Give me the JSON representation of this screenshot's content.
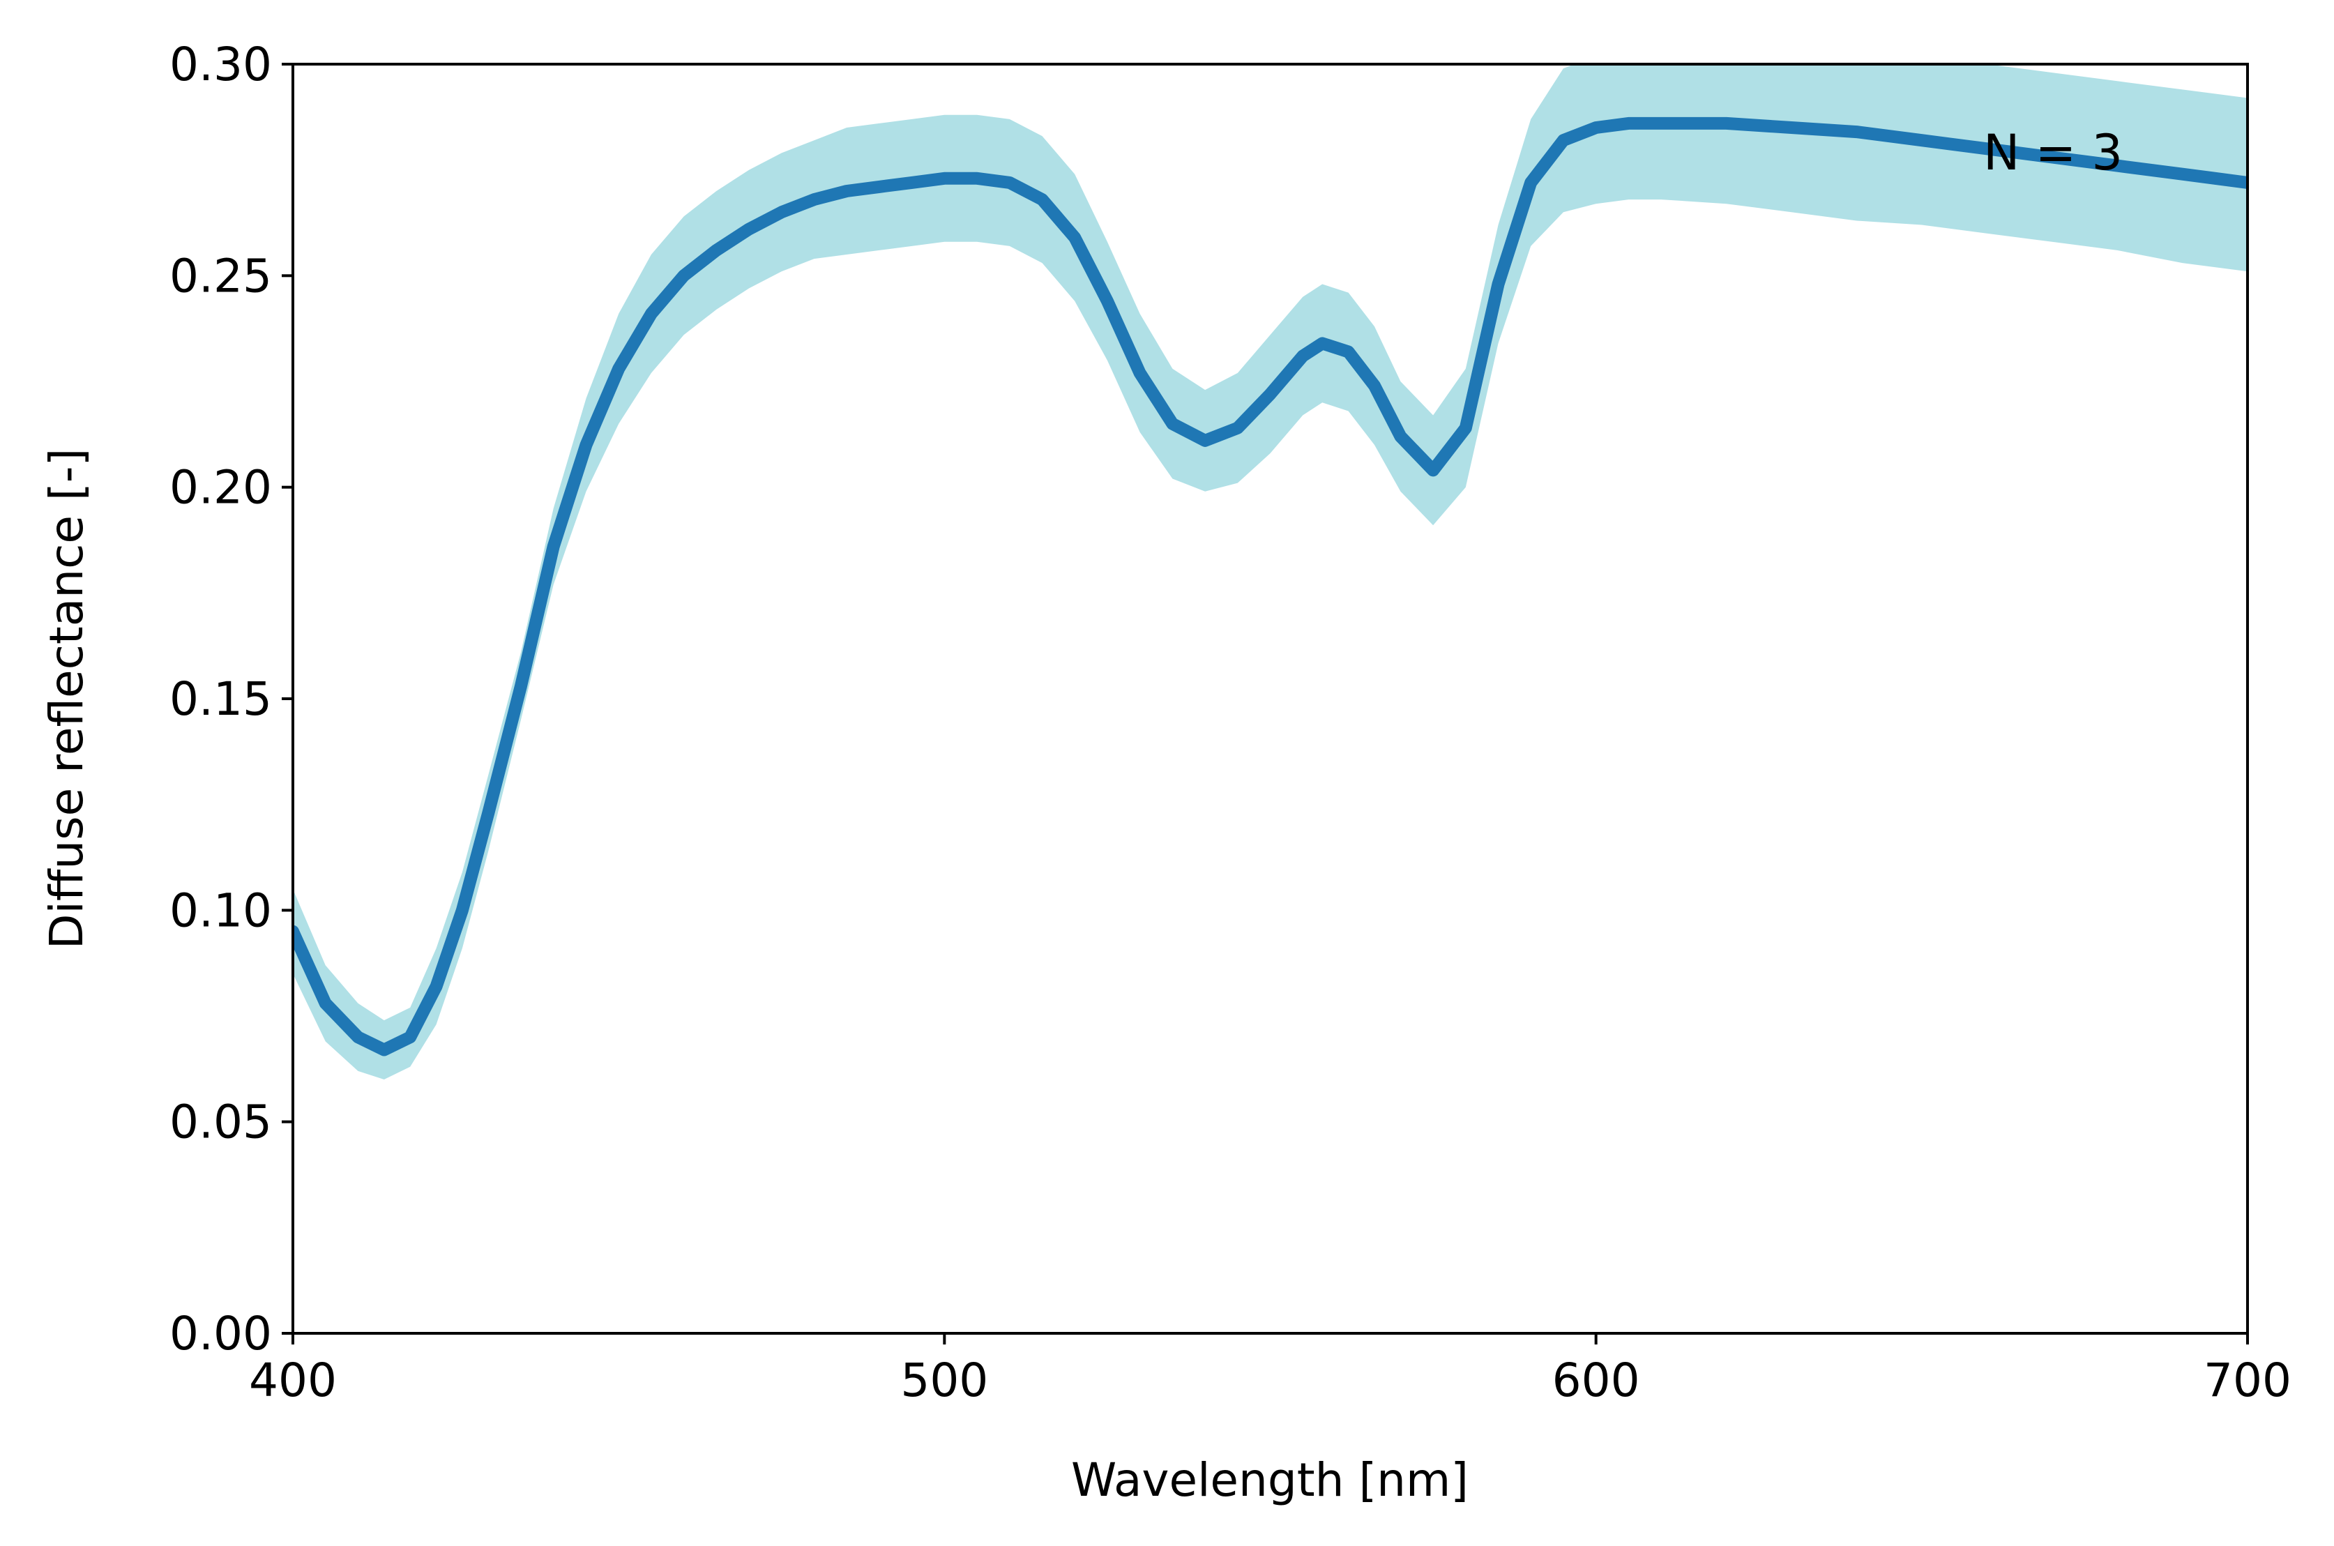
{
  "chart_data": {
    "type": "line",
    "xlabel": "Wavelength [nm]",
    "ylabel": "Diffuse reflectance [-]",
    "xlim": [
      400,
      700
    ],
    "ylim": [
      0.0,
      0.3
    ],
    "xticks": [
      "400",
      "500",
      "600",
      "700"
    ],
    "yticks": [
      "0.00",
      "0.05",
      "0.10",
      "0.15",
      "0.20",
      "0.25",
      "0.30"
    ],
    "grid": false,
    "annotation": "N = 3",
    "colors": {
      "line": "#1f77b4",
      "band": "#b0e0e6",
      "axis": "#000000"
    },
    "series": [
      {
        "x": [
          400,
          405,
          410,
          414,
          418,
          422,
          426,
          430,
          435,
          440,
          445,
          450,
          455,
          460,
          465,
          470,
          475,
          480,
          485,
          490,
          495,
          500,
          505,
          510,
          515,
          520,
          525,
          530,
          535,
          540,
          545,
          550,
          555,
          558,
          562,
          566,
          570,
          575,
          580,
          585,
          590,
          595,
          600,
          605,
          610,
          620,
          630,
          640,
          650,
          660,
          670,
          680,
          690,
          700
        ],
        "y": [
          0.095,
          0.078,
          0.07,
          0.067,
          0.07,
          0.082,
          0.1,
          0.123,
          0.153,
          0.186,
          0.21,
          0.228,
          0.241,
          0.25,
          0.256,
          0.261,
          0.265,
          0.268,
          0.27,
          0.271,
          0.272,
          0.273,
          0.273,
          0.272,
          0.268,
          0.259,
          0.244,
          0.227,
          0.215,
          0.211,
          0.214,
          0.222,
          0.231,
          0.234,
          0.232,
          0.224,
          0.212,
          0.204,
          0.214,
          0.248,
          0.272,
          0.282,
          0.285,
          0.286,
          0.286,
          0.286,
          0.285,
          0.284,
          0.282,
          0.28,
          0.278,
          0.276,
          0.274,
          0.272
        ],
        "lower": [
          0.085,
          0.069,
          0.062,
          0.06,
          0.063,
          0.073,
          0.091,
          0.114,
          0.145,
          0.177,
          0.199,
          0.215,
          0.227,
          0.236,
          0.242,
          0.247,
          0.251,
          0.254,
          0.255,
          0.256,
          0.257,
          0.258,
          0.258,
          0.257,
          0.253,
          0.244,
          0.23,
          0.213,
          0.202,
          0.199,
          0.201,
          0.208,
          0.217,
          0.22,
          0.218,
          0.21,
          0.199,
          0.191,
          0.2,
          0.234,
          0.257,
          0.265,
          0.267,
          0.268,
          0.268,
          0.267,
          0.265,
          0.263,
          0.262,
          0.26,
          0.258,
          0.256,
          0.253,
          0.251
        ],
        "upper": [
          0.105,
          0.087,
          0.078,
          0.074,
          0.077,
          0.091,
          0.109,
          0.132,
          0.161,
          0.195,
          0.221,
          0.241,
          0.255,
          0.264,
          0.27,
          0.275,
          0.279,
          0.282,
          0.285,
          0.286,
          0.287,
          0.288,
          0.288,
          0.287,
          0.283,
          0.274,
          0.258,
          0.241,
          0.228,
          0.223,
          0.227,
          0.236,
          0.245,
          0.248,
          0.246,
          0.238,
          0.225,
          0.217,
          0.228,
          0.262,
          0.287,
          0.299,
          0.302,
          0.303,
          0.303,
          0.305,
          0.305,
          0.305,
          0.302,
          0.3,
          0.298,
          0.296,
          0.294,
          0.292
        ]
      }
    ]
  }
}
